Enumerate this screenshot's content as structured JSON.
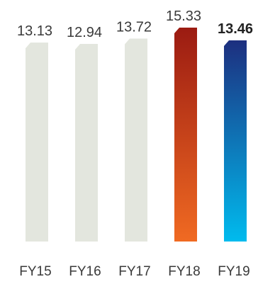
{
  "chart_data": {
    "type": "bar",
    "categories": [
      "FY15",
      "FY16",
      "FY17",
      "FY18",
      "FY19"
    ],
    "values": [
      13.13,
      12.94,
      13.72,
      15.33,
      13.46
    ],
    "value_labels": [
      "13.13",
      "12.94",
      "13.72",
      "15.33",
      "13.46"
    ],
    "highlight_bold_index": 4,
    "title": "",
    "xlabel": "",
    "ylabel": "",
    "grid": false,
    "colors": {
      "default_bar": "#e3e6de",
      "fy18_top": "#9b1b12",
      "fy18_bottom": "#f06a22",
      "fy19_top": "#1d2f7f",
      "fy19_bottom": "#00bbee",
      "label_text": "#3a3a3a"
    }
  }
}
